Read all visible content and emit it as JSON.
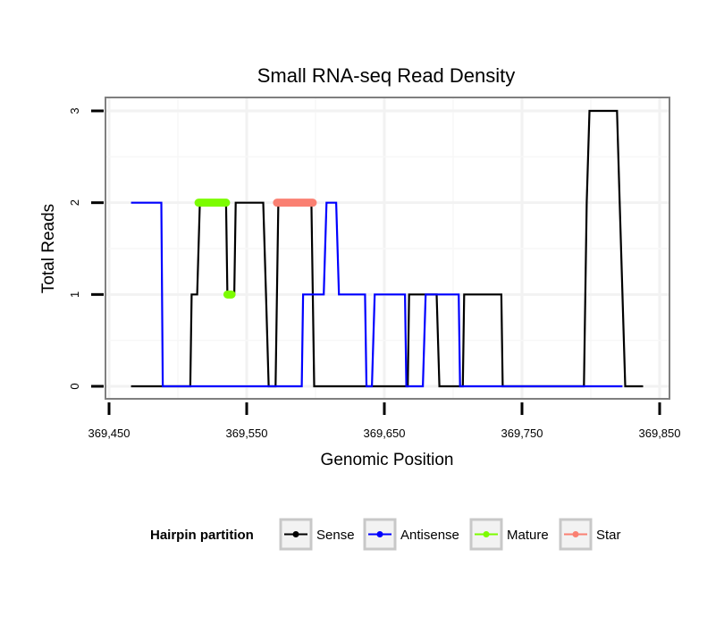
{
  "chart_data": {
    "type": "line",
    "title": "Small RNA-seq Read Density",
    "xlabel": "Genomic Position",
    "ylabel": "Total Reads",
    "xlim": [
      369450,
      369850
    ],
    "ylim": [
      0,
      3
    ],
    "x_ticks": [
      369450,
      369550,
      369650,
      369750,
      369850
    ],
    "x_tick_labels": [
      "369,450",
      "369,550",
      "369,650",
      "369,750",
      "369,850"
    ],
    "y_ticks": [
      0,
      1,
      2,
      3
    ],
    "y_tick_labels": [
      "0",
      "1",
      "2",
      "3"
    ],
    "grid": true,
    "legend": {
      "title": "Hairpin partition",
      "position": "bottom",
      "entries": [
        {
          "name": "Sense",
          "color": "#000000"
        },
        {
          "name": "Antisense",
          "color": "#0000ff"
        },
        {
          "name": "Mature",
          "color": "#7cfc00"
        },
        {
          "name": "Star",
          "color": "#fa8072"
        }
      ]
    },
    "series": [
      {
        "name": "Sense",
        "color": "#000000",
        "style": "line",
        "points": [
          [
            369466,
            0
          ],
          [
            369509,
            0
          ],
          [
            369510,
            1
          ],
          [
            369514,
            1
          ],
          [
            369516,
            2
          ],
          [
            369535,
            2
          ],
          [
            369536,
            1
          ],
          [
            369541,
            1
          ],
          [
            369542,
            2
          ],
          [
            369562,
            2
          ],
          [
            369564,
            1
          ],
          [
            369566,
            0
          ],
          [
            369571,
            0
          ],
          [
            369573,
            2
          ],
          [
            369597,
            2
          ],
          [
            369599,
            0
          ],
          [
            369667,
            0
          ],
          [
            369668,
            1
          ],
          [
            369688,
            1
          ],
          [
            369690,
            0
          ],
          [
            369707,
            0
          ],
          [
            369708,
            1
          ],
          [
            369735,
            1
          ],
          [
            369736,
            0
          ],
          [
            369795,
            0
          ],
          [
            369797,
            2
          ],
          [
            369799,
            3
          ],
          [
            369819,
            3
          ],
          [
            369821,
            2
          ],
          [
            369823,
            1
          ],
          [
            369825,
            0
          ],
          [
            369838,
            0
          ]
        ]
      },
      {
        "name": "Antisense",
        "color": "#0000ff",
        "style": "line",
        "points": [
          [
            369466,
            2
          ],
          [
            369488,
            2
          ],
          [
            369489,
            0
          ],
          [
            369590,
            0
          ],
          [
            369591,
            1
          ],
          [
            369606,
            1
          ],
          [
            369608,
            2
          ],
          [
            369615,
            2
          ],
          [
            369617,
            1
          ],
          [
            369636,
            1
          ],
          [
            369637,
            0
          ],
          [
            369641,
            0
          ],
          [
            369643,
            1
          ],
          [
            369665,
            1
          ],
          [
            369666,
            0
          ],
          [
            369678,
            0
          ],
          [
            369680,
            1
          ],
          [
            369704,
            1
          ],
          [
            369705,
            0
          ],
          [
            369823,
            0
          ]
        ]
      },
      {
        "name": "Mature",
        "color": "#7cfc00",
        "style": "segment",
        "points": [
          [
            369515,
            2
          ],
          [
            369535,
            2
          ],
          [
            369536,
            1
          ],
          [
            369539,
            1
          ]
        ]
      },
      {
        "name": "Star",
        "color": "#fa8072",
        "style": "segment",
        "points": [
          [
            369572,
            2
          ],
          [
            369598,
            2
          ]
        ]
      }
    ]
  }
}
